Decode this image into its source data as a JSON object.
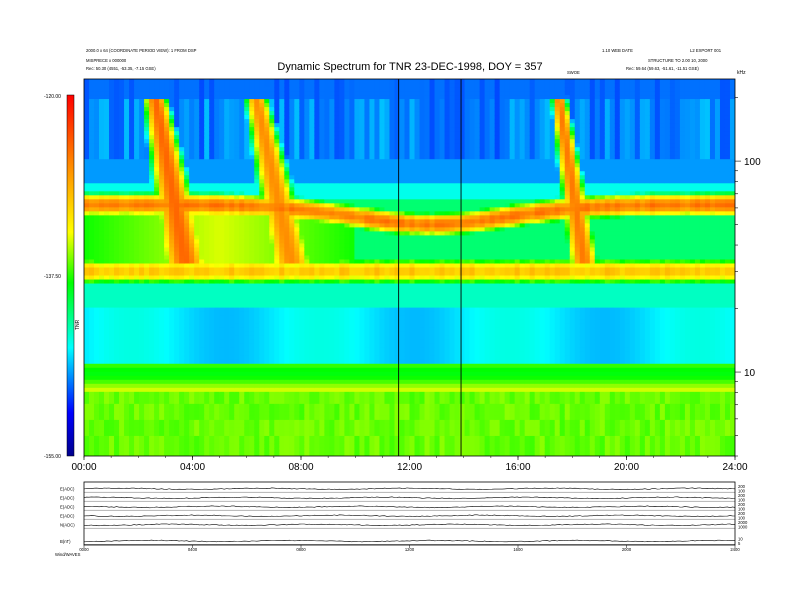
{
  "chart_data": {
    "type": "heatmap",
    "title": "Dynamic Spectrum for TNR 23-DEC-1998, DOY = 357",
    "header_left": [
      "2000.0 x 64 (COORDINATE PERIOD VIEW): 1 FROM DSP",
      "MISPRECE x 000000",
      "Rec: 50.30 (4551, -53.35, -7.15 GSE)"
    ],
    "header_right": [
      "1.10 WEB DATE",
      "L2 EXPORT 001",
      "STRUCTURE TO 2.00 10, 2000",
      "Rec: 59.64 (59.63, -51.61, -11.51 GSE)"
    ],
    "marker_label": "SWOE",
    "freq_unit": "kHz",
    "colorbar_label": "TNR",
    "x_axis": {
      "ticks": [
        "00:00",
        "04:00",
        "08:00",
        "12:00",
        "16:00",
        "20:00",
        "24:00"
      ],
      "range_hours": [
        0,
        24
      ]
    },
    "y_axis": {
      "scale": "log",
      "ticks": [
        100,
        10
      ],
      "range_khz": [
        4,
        245
      ]
    },
    "colorbar": {
      "ticks": [
        "-120.00",
        "-137.50",
        "-155.00"
      ],
      "range": [
        -155,
        -120
      ]
    },
    "vertical_lines_hours": [
      11.6,
      13.9
    ],
    "bands": [
      {
        "name": "type-III burst 1",
        "kind": "burst",
        "t0": 2.5,
        "t1": 3.7,
        "fdrift": 0.3,
        "value": -125
      },
      {
        "name": "type-III burst 2",
        "kind": "burst",
        "t0": 6.2,
        "t1": 7.6,
        "fdrift": 0.3,
        "value": -127
      },
      {
        "name": "type-III burst 3",
        "kind": "burst",
        "t0": 17.4,
        "t1": 18.4,
        "fdrift": 0.2,
        "value": -126
      },
      {
        "name": "upper emission band",
        "freq_khz_start": 62,
        "freq_khz_mid": 50,
        "freq_khz_end": 62,
        "value": -125
      },
      {
        "name": "lower emission band",
        "freq_khz": 30,
        "value": -129
      },
      {
        "name": "thermal noise",
        "freq_khz": 15,
        "value": -145
      }
    ],
    "panels": [
      {
        "label": "E(ADC)",
        "ticks": [
          "200",
          "100"
        ]
      },
      {
        "label": "E(ADC)",
        "ticks": [
          "200",
          "100"
        ]
      },
      {
        "label": "E(ADC)",
        "ticks": [
          "200",
          "100"
        ]
      },
      {
        "label": "E(ADC)",
        "ticks": [
          "200",
          "100"
        ]
      },
      {
        "label": "N(ADC)",
        "ticks": [
          "2000",
          "1000"
        ]
      },
      {
        "label": "B(nT)",
        "ticks": [
          "10",
          "5"
        ]
      }
    ],
    "panel_x_ticks": [
      "0000",
      "0400",
      "0800",
      "1200",
      "1600",
      "2000",
      "2400"
    ],
    "footer_left": "Wind/WAVES"
  }
}
